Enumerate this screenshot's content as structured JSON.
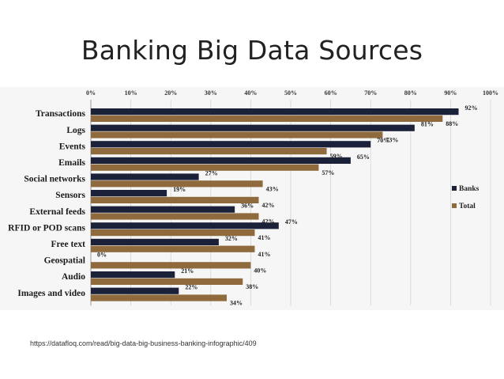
{
  "slide": {
    "title": "Banking Big Data Sources",
    "source_url": "https://datafloq.com/read/big-data-big-business-banking-infographic/409"
  },
  "colors": {
    "banks": "#1b2139",
    "total": "#8e6a3c",
    "grid": "#d4d4d4",
    "chart_background": "#f6f6f6"
  },
  "chart_data": {
    "type": "bar",
    "orientation": "horizontal",
    "categories": [
      "Transactions",
      "Logs",
      "Events",
      "Emails",
      "Social networks",
      "Sensors",
      "External feeds",
      "RFID or POD scans",
      "Free text",
      "Geospatial",
      "Audio",
      "Images and video"
    ],
    "series": [
      {
        "name": "Banks",
        "values": [
          92,
          81,
          70,
          65,
          27,
          19,
          36,
          47,
          32,
          0,
          21,
          22
        ]
      },
      {
        "name": "Total",
        "values": [
          88,
          73,
          59,
          57,
          43,
          42,
          42,
          41,
          41,
          40,
          38,
          34
        ]
      }
    ],
    "xlim": [
      0,
      100
    ],
    "x_ticks": [
      "0%",
      "10%",
      "20%",
      "30%",
      "40%",
      "50%",
      "60%",
      "70%",
      "80%",
      "90%",
      "100%"
    ],
    "value_suffix": "%",
    "grid": true,
    "legend_position": "right"
  }
}
